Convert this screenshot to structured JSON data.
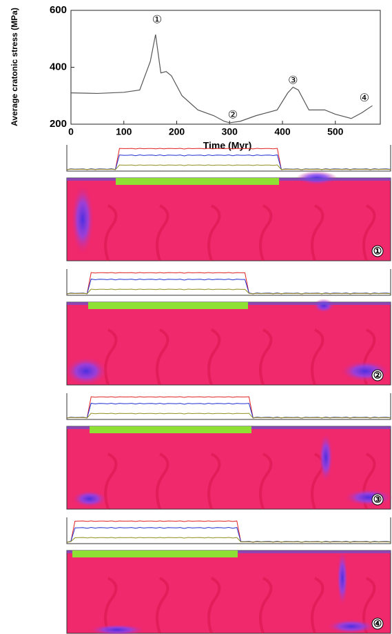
{
  "chart_data": {
    "type": "line",
    "ylabel": "Average cratonic stress (MPa)",
    "xlabel": "Time (Myr)",
    "x": [
      0,
      50,
      100,
      130,
      150,
      160,
      170,
      180,
      190,
      210,
      240,
      270,
      290,
      300,
      320,
      350,
      390,
      410,
      420,
      430,
      450,
      480,
      500,
      530,
      550,
      570
    ],
    "series": [
      {
        "color": "#555555",
        "values": [
          310,
          308,
          312,
          320,
          420,
          515,
          380,
          385,
          370,
          300,
          250,
          230,
          210,
          205,
          210,
          230,
          250,
          310,
          330,
          320,
          250,
          250,
          235,
          220,
          240,
          265
        ]
      }
    ],
    "xlim": [
      0,
      585
    ],
    "ylim": [
      200,
      600
    ],
    "xticks": [
      0,
      100,
      200,
      300,
      400,
      500
    ],
    "yticks": [
      200,
      400,
      600
    ],
    "annotations": [
      {
        "text": "①",
        "x": 163,
        "y": 565
      },
      {
        "text": "②",
        "x": 306,
        "y": 231
      },
      {
        "text": "③",
        "x": 420,
        "y": 352
      },
      {
        "text": "④",
        "x": 555,
        "y": 290
      }
    ]
  },
  "panels": [
    {
      "label": "①"
    },
    {
      "label": "②"
    },
    {
      "label": "③"
    },
    {
      "label": "④"
    }
  ]
}
